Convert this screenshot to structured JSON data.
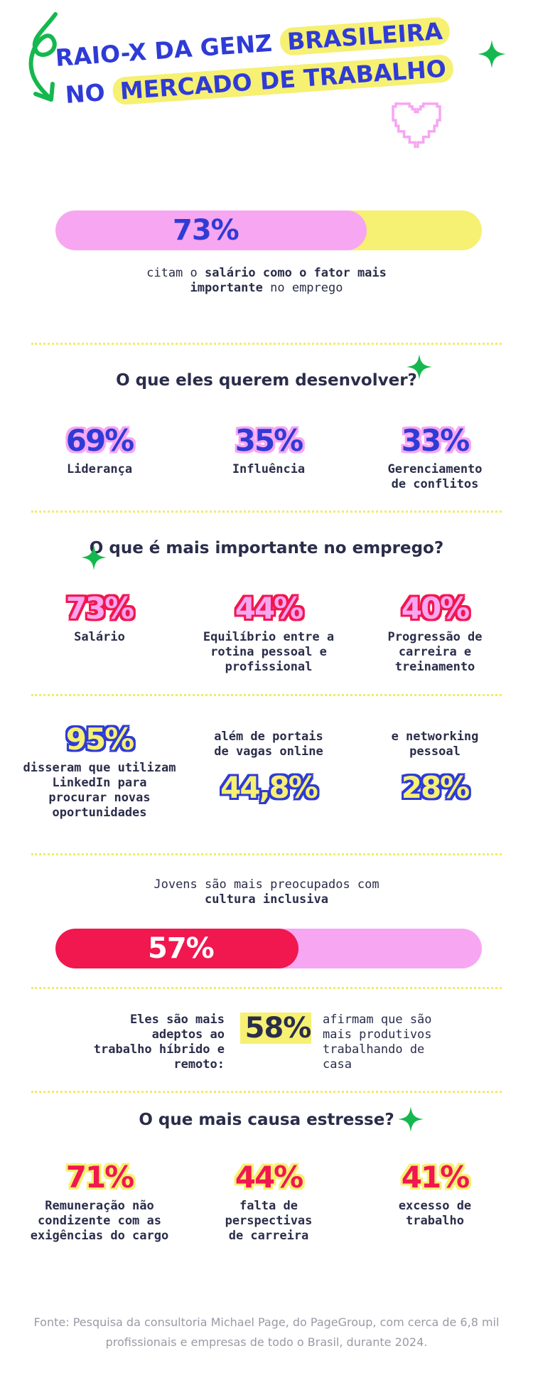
{
  "title": {
    "line1_a": "RAIO-X DA GENZ",
    "line1_b": "BRASILEIRA",
    "line2_a": "NO",
    "line2_b": "MERCADO DE TRABALHO"
  },
  "colors": {
    "blue": "#2f3bd6",
    "pink": "#f7a6f2",
    "yellow": "#f6f073",
    "red": "#f1174f",
    "green": "#14b84e",
    "text": "#2a2d4a"
  },
  "salary_bar": {
    "value": "73%",
    "fraction": 0.73,
    "desc_a": "citam o",
    "desc_b": "salário como o fator mais importante",
    "desc_c": "no emprego"
  },
  "develop": {
    "heading": "O que eles querem desenvolver?",
    "items": [
      {
        "value": "69%",
        "label": "Liderança"
      },
      {
        "value": "35%",
        "label": "Influência"
      },
      {
        "value": "33%",
        "label": "Gerenciamento de conflitos"
      }
    ]
  },
  "important": {
    "heading": "O que é mais importante no emprego?",
    "items": [
      {
        "value": "73%",
        "label": "Salário"
      },
      {
        "value": "44%",
        "label": "Equilíbrio entre a rotina pessoal e profissional"
      },
      {
        "value": "40%",
        "label": "Progressão de carreira e treinamento"
      }
    ]
  },
  "jobs": {
    "linkedin_value": "95%",
    "linkedin_desc_a": "disseram que utilizam",
    "linkedin_desc_b": "LinkedIn",
    "linkedin_desc_c": "para procurar novas oportunidades",
    "portals_desc": "além de portais de vagas online",
    "portals_value": "44,8%",
    "networking_desc": "e networking pessoal",
    "networking_value": "28%"
  },
  "inclusive": {
    "text_a": "Jovens são mais preocupados com",
    "text_b": "cultura inclusiva",
    "value": "57%",
    "fraction": 0.57
  },
  "hybrid": {
    "left": "Eles são mais adeptos ao trabalho híbrido e remoto:",
    "value": "58%",
    "right": "afirmam que são mais produtivos trabalhando de casa"
  },
  "stress": {
    "heading": "O que mais causa estresse?",
    "items": [
      {
        "value": "71%",
        "label": "Remuneração não condizente com as exigências do cargo"
      },
      {
        "value": "44%",
        "label": "falta de perspectivas de carreira"
      },
      {
        "value": "41%",
        "label": "excesso de trabalho"
      }
    ]
  },
  "source": "Fonte: Pesquisa da consultoria Michael Page, do PageGroup, com cerca de 6,8 mil profissionais e empresas de todo o Brasil, durante 2024."
}
